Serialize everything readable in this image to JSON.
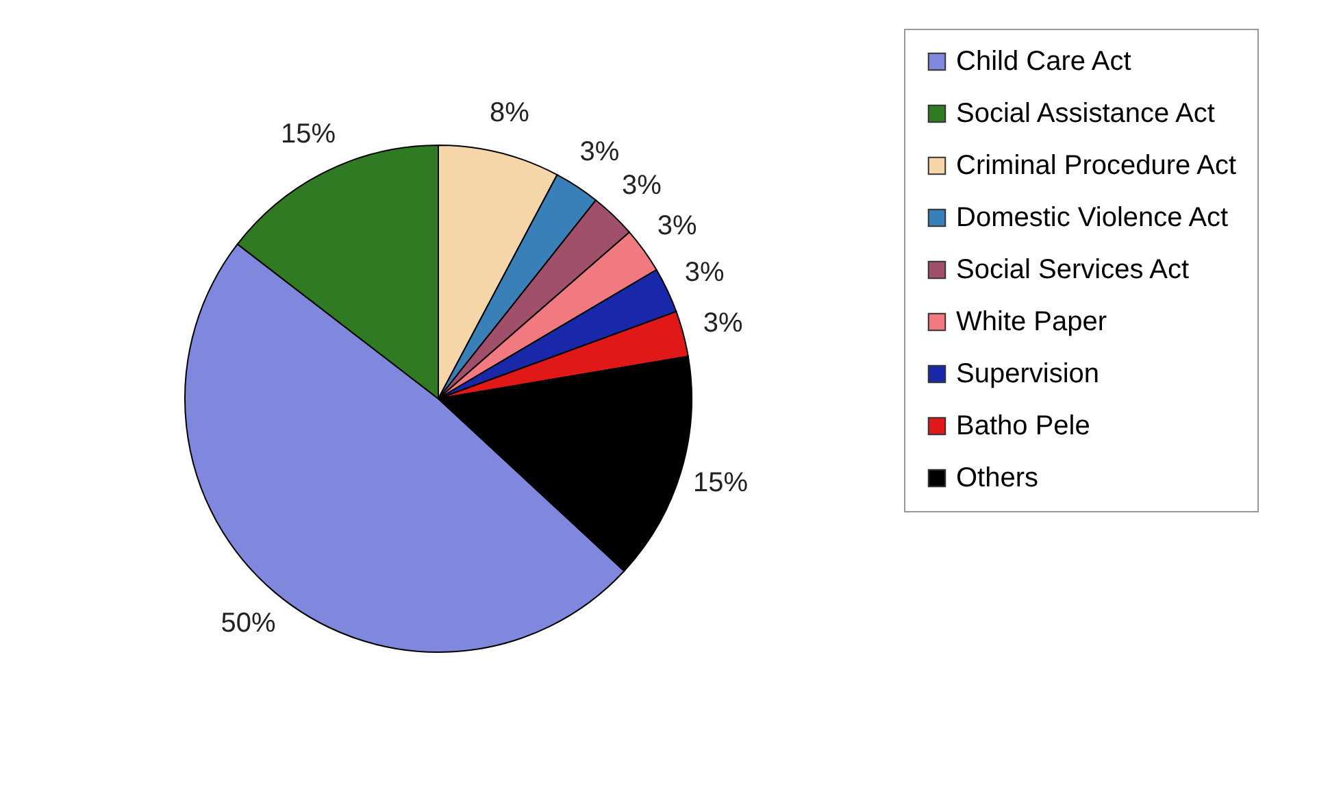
{
  "chart_data": {
    "type": "pie",
    "categories": [
      "Child Care Act",
      "Social Assistance Act",
      "Criminal Procedure Act",
      "Domestic Violence Act",
      "Social Services Act",
      "White Paper",
      "Supervision",
      "Batho Pele",
      "Others"
    ],
    "values": [
      50,
      15,
      8,
      3,
      3,
      3,
      3,
      3,
      15
    ],
    "colors": [
      "#8088dd",
      "#2f7a22",
      "#f6d6a8",
      "#3a80b8",
      "#a0506a",
      "#f07a80",
      "#1828a8",
      "#e01818",
      "#000000"
    ],
    "value_labels": [
      "50%",
      "15%",
      "8%",
      "3%",
      "3%",
      "3%",
      "3%",
      "3%",
      "15%"
    ],
    "legend": "right"
  }
}
